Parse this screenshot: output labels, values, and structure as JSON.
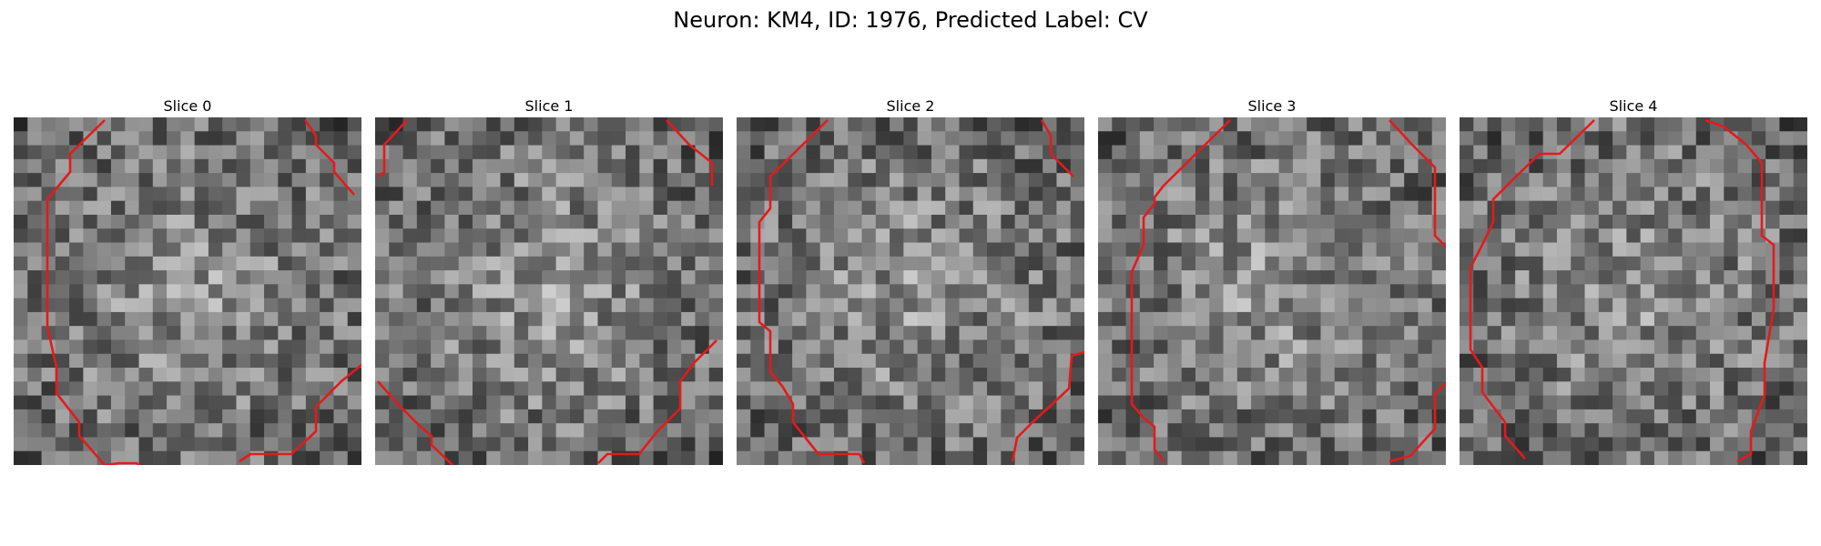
{
  "figure": {
    "title": "Neuron: KM4, ID: 1976, Predicted Label: CV"
  },
  "contour_color": "#e41a1c",
  "panels": [
    {
      "title": "Slice 0",
      "seed": 11
    },
    {
      "title": "Slice 1",
      "seed": 29
    },
    {
      "title": "Slice 2",
      "seed": 47
    },
    {
      "title": "Slice 3",
      "seed": 83
    },
    {
      "title": "Slice 4",
      "seed": 131
    }
  ]
}
